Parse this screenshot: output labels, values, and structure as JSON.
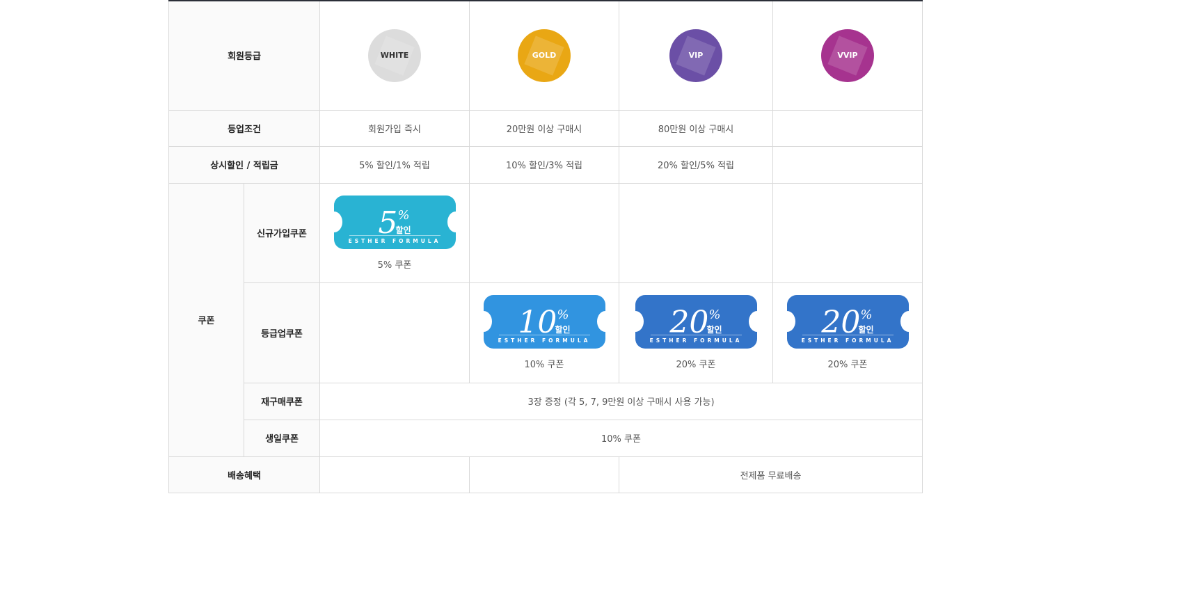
{
  "labels": {
    "grade": "회원등급",
    "condition": "등업조건",
    "discount": "상시할인 / 적립금",
    "coupon": "쿠폰",
    "signup": "신규가입쿠폰",
    "upgrade": "등급업쿠폰",
    "repurchase": "재구매쿠폰",
    "birthday": "생일쿠폰",
    "shipping": "배송혜택"
  },
  "grades": [
    {
      "name": "WHITE",
      "color": "#dcdcdc",
      "text": "#333333"
    },
    {
      "name": "GOLD",
      "color": "#e9a714",
      "text": "#ffffff"
    },
    {
      "name": "VIP",
      "color": "#6b4fa6",
      "text": "#ffffff"
    },
    {
      "name": "VVIP",
      "color": "#a6338f",
      "text": "#ffffff"
    }
  ],
  "conditions": [
    "회원가입 즉시",
    "20만원 이상 구매시",
    "80만원 이상 구매시",
    ""
  ],
  "discounts": [
    "5% 할인/1% 적립",
    "10% 할인/3% 적립",
    "20% 할인/5% 적립",
    ""
  ],
  "coupon_pct": "%",
  "coupon_off": "할인",
  "brand": "ESTHER FORMULA",
  "signup_coupon": {
    "value": "5",
    "caption": "5% 쿠폰",
    "color": "#29b3d3"
  },
  "upgrade_coupons": [
    {
      "value": "10",
      "caption": "10% 쿠폰",
      "color": "#3194e0"
    },
    {
      "value": "20",
      "caption": "20% 쿠폰",
      "color": "#3374c9"
    },
    {
      "value": "20",
      "caption": "20% 쿠폰",
      "color": "#3374c9"
    }
  ],
  "repurchase_text": "3장 증정 (각 5, 7, 9만원 이상 구매시 사용 가능)",
  "birthday_text": "10% 쿠폰",
  "shipping_text": "전제품 무료배송"
}
